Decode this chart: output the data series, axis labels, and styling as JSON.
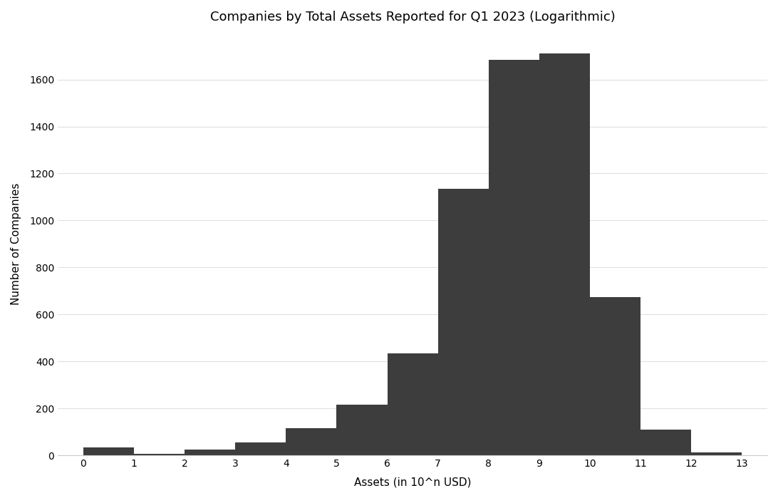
{
  "bin_edges": [
    0,
    1,
    2,
    3,
    4,
    5,
    6,
    7,
    8,
    9,
    10,
    11,
    12,
    13
  ],
  "counts": [
    32,
    5,
    25,
    55,
    115,
    215,
    435,
    1135,
    1685,
    1710,
    675,
    110,
    12
  ],
  "bar_color": "#3d3d3d",
  "title": "Companies by Total Assets Reported for Q1 2023 (Logarithmic)",
  "xlabel": "Assets (in 10^n USD)",
  "ylabel": "Number of Companies",
  "xticks": [
    0,
    1,
    2,
    3,
    4,
    5,
    6,
    7,
    8,
    9,
    10,
    11,
    12,
    13
  ],
  "yticks": [
    0,
    200,
    400,
    600,
    800,
    1000,
    1200,
    1400,
    1600
  ],
  "ylim": [
    0,
    1800
  ],
  "xlim": [
    -0.5,
    13.5
  ],
  "background_color": "#ffffff",
  "title_fontsize": 13,
  "label_fontsize": 11,
  "tick_fontsize": 10,
  "grid_color": "#e0e0e0",
  "spine_color": "#cccccc"
}
